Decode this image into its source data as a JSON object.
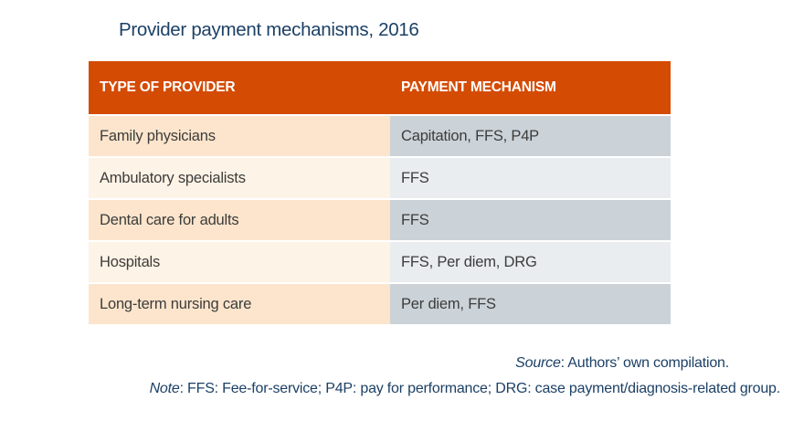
{
  "colors": {
    "header_orange": "#d44b04",
    "row_odd_left": "#fce5cc",
    "row_even_left": "#fdf3e6",
    "row_odd_right": "#cbd2d8",
    "row_even_right": "#e9edf0",
    "title_blue": "#1c4066",
    "body_text": "#3c3c3b"
  },
  "title": "Provider payment mechanisms, 2016",
  "table": {
    "headers": [
      "TYPE OF PROVIDER",
      "PAYMENT MECHANISM"
    ],
    "rows": [
      {
        "provider": "Family physicians",
        "mechanism": "Capitation, FFS, P4P"
      },
      {
        "provider": "Ambulatory specialists",
        "mechanism": "FFS"
      },
      {
        "provider": "Dental care for adults",
        "mechanism": "FFS"
      },
      {
        "provider": "Hospitals",
        "mechanism": "FFS, Per diem, DRG"
      },
      {
        "provider": "Long-term nursing care",
        "mechanism": "Per diem, FFS"
      }
    ]
  },
  "source": {
    "label": "Source",
    "text": ": Authors’ own compilation."
  },
  "note": {
    "label": "Note",
    "text": ": FFS: Fee-for-service; P4P: pay for performance; DRG: case payment/diagnosis-related group."
  }
}
